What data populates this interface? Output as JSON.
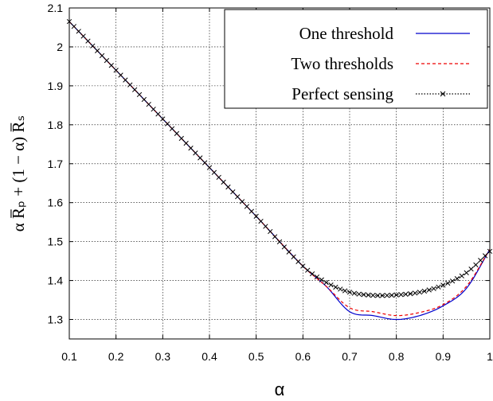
{
  "chart_data": {
    "type": "line",
    "xlabel": "α",
    "ylabel": "α R̅ₚ + (1 − α) R̅ₛ",
    "xlim": [
      0.1,
      1
    ],
    "ylim": [
      1.25,
      2.1
    ],
    "xticks": [
      "0.1",
      "0.2",
      "0.3",
      "0.4",
      "0.5",
      "0.6",
      "0.7",
      "0.8",
      "0.9",
      "1"
    ],
    "yticks": [
      "1.3",
      "1.4",
      "1.5",
      "1.6",
      "1.7",
      "1.8",
      "1.9",
      "2",
      "2.1"
    ],
    "xtick_values": [
      0.1,
      0.2,
      0.3,
      0.4,
      0.5,
      0.6,
      0.7,
      0.8,
      0.9,
      1.0
    ],
    "ytick_values": [
      1.3,
      1.4,
      1.5,
      1.6,
      1.7,
      1.8,
      1.9,
      2.0,
      2.1
    ],
    "grid": true,
    "legend_position": "top-right",
    "series": [
      {
        "name": "One threshold",
        "color": "#0000cc",
        "style": "solid",
        "marker": "none",
        "x": [
          0.1,
          0.2,
          0.3,
          0.4,
          0.5,
          0.6,
          0.65,
          0.7,
          0.75,
          0.8,
          0.85,
          0.9,
          0.95,
          1.0
        ],
        "y": [
          2.065,
          1.94,
          1.815,
          1.69,
          1.565,
          1.437,
          1.385,
          1.32,
          1.31,
          1.3,
          1.31,
          1.335,
          1.38,
          1.48
        ]
      },
      {
        "name": "Two thresholds",
        "color": "#ee0000",
        "style": "dashed",
        "marker": "none",
        "x": [
          0.1,
          0.2,
          0.3,
          0.4,
          0.5,
          0.6,
          0.65,
          0.7,
          0.75,
          0.8,
          0.85,
          0.9,
          0.95,
          1.0
        ],
        "y": [
          2.065,
          1.94,
          1.815,
          1.69,
          1.565,
          1.437,
          1.385,
          1.33,
          1.32,
          1.31,
          1.318,
          1.338,
          1.385,
          1.48
        ]
      },
      {
        "name": "Perfect sensing",
        "color": "#000000",
        "style": "dotted",
        "marker": "x",
        "x": [
          0.1,
          0.2,
          0.3,
          0.4,
          0.5,
          0.6,
          0.65,
          0.7,
          0.75,
          0.8,
          0.85,
          0.9,
          0.95,
          1.0
        ],
        "y": [
          2.065,
          1.94,
          1.815,
          1.69,
          1.565,
          1.437,
          1.395,
          1.37,
          1.362,
          1.363,
          1.37,
          1.388,
          1.42,
          1.475
        ]
      }
    ]
  }
}
